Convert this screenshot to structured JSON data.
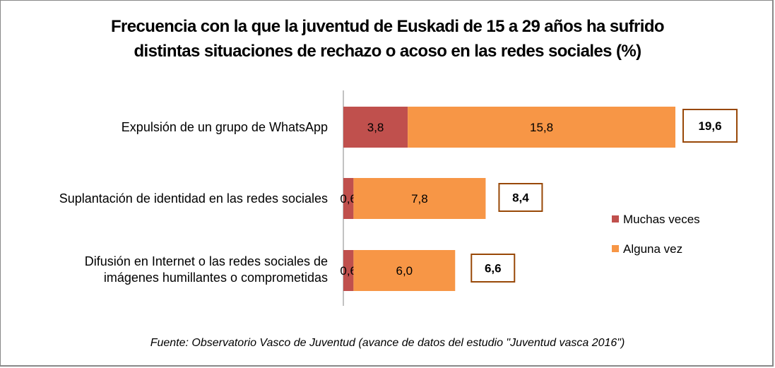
{
  "chart_data": {
    "type": "bar",
    "orientation": "horizontal",
    "stacked": true,
    "title": "Frecuencia con la que la juventud de Euskadi de 15 a 29 años ha sufrido distintas situaciones de rechazo o acoso en las redes sociales (%)",
    "title_lines": [
      "Frecuencia con la que la juventud de Euskadi de 15 a 29 años ha sufrido",
      "distintas situaciones de rechazo o acoso en las redes sociales (%)"
    ],
    "categories": [
      "Expulsión de un grupo de WhatsApp",
      "Suplantación de identidad en las redes sociales",
      "Difusión en Internet o las redes sociales de imágenes humillantes  o comprometidas"
    ],
    "category_lines": [
      [
        "Expulsión de un grupo de WhatsApp"
      ],
      [
        "Suplantación de identidad en las redes sociales"
      ],
      [
        "Difusión en Internet o las redes sociales de",
        "imágenes humillantes  o comprometidas"
      ]
    ],
    "series": [
      {
        "name": "Muchas veces",
        "color": "#C0504D",
        "values": [
          3.8,
          0.6,
          0.6
        ],
        "labels": [
          "3,8",
          "0,6",
          "0,6"
        ]
      },
      {
        "name": "Alguna vez",
        "color": "#F79646",
        "values": [
          15.8,
          7.8,
          6.0
        ],
        "labels": [
          "15,8",
          "7,8",
          "6,0"
        ]
      }
    ],
    "totals": [
      19.6,
      8.4,
      6.6
    ],
    "total_labels": [
      "19,6",
      "8,4",
      "6,6"
    ],
    "total_box_border": "#984807",
    "xlim": [
      0,
      19.6
    ],
    "xlabel": "",
    "ylabel": "",
    "grid": false,
    "legend_position": "right",
    "source": "Fuente: Observatorio Vasco de Juventud (avance de datos del estudio \"Juventud vasca 2016\")"
  }
}
